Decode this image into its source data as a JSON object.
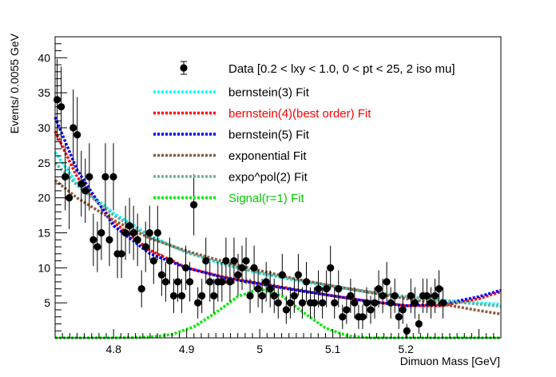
{
  "chart_data": {
    "type": "scatter",
    "title": "",
    "xlabel": "Dimuon Mass [GeV]",
    "ylabel": "Events/ 0.0055 GeV",
    "xlim": [
      4.72,
      5.33
    ],
    "ylim": [
      0,
      43
    ],
    "x_ticks": [
      4.8,
      4.9,
      5,
      5.1,
      5.2
    ],
    "x_tick_labels": [
      "4.8",
      "4.9",
      "5",
      "5.1",
      "5.2"
    ],
    "y_ticks": [
      0,
      5,
      10,
      15,
      20,
      25,
      30,
      35,
      40
    ],
    "y_tick_labels": [
      "",
      "5",
      "10",
      "15",
      "20",
      "25",
      "30",
      "35",
      "40"
    ],
    "grid": false,
    "legend_position": "top-right",
    "data_series": {
      "name": "Data [0.2 < lxy < 1.0, 0 < pt < 25, 2 iso mu]",
      "bin_width": 0.0055,
      "x_start": 4.7228,
      "values": [
        34,
        33,
        23,
        20,
        30,
        29,
        22,
        21,
        23,
        14,
        13,
        15,
        23,
        14,
        23,
        12,
        12,
        15,
        16,
        15,
        14,
        7,
        13,
        15,
        11,
        15,
        9,
        8,
        11,
        6,
        8,
        6,
        10,
        8,
        19,
        5,
        6,
        11,
        8,
        6,
        8,
        8,
        11,
        8,
        11,
        9,
        10,
        11,
        6,
        10,
        7,
        6,
        8,
        7,
        6,
        5,
        9,
        4,
        5,
        6,
        9,
        5,
        8,
        5,
        5,
        7,
        5,
        7,
        10,
        5,
        7,
        3,
        4,
        6,
        5,
        3,
        3,
        5,
        4,
        5,
        7,
        6,
        8,
        5,
        6,
        3,
        4,
        1,
        6,
        5,
        2,
        6,
        6,
        5,
        6,
        7,
        5
      ]
    },
    "fits": [
      {
        "name": "bernstein(3) Fit",
        "color": "#00ffff",
        "x": [
          4.72,
          4.75,
          4.8,
          4.85,
          4.9,
          4.95,
          5.0,
          5.05,
          5.1,
          5.15,
          5.2,
          5.25,
          5.3,
          5.33
        ],
        "y": [
          26.5,
          22.0,
          17.8,
          14.6,
          12.2,
          10.5,
          9.2,
          8.2,
          7.3,
          6.5,
          5.9,
          5.4,
          5.0,
          4.8
        ]
      },
      {
        "name": "bernstein(4)(best order) Fit",
        "color": "#ff0000",
        "x": [
          4.72,
          4.75,
          4.8,
          4.85,
          4.9,
          4.95,
          5.0,
          5.05,
          5.1,
          5.15,
          5.2,
          5.25,
          5.3,
          5.33
        ],
        "y": [
          29.5,
          23.0,
          16.5,
          12.5,
          10.0,
          8.7,
          7.8,
          6.9,
          6.0,
          5.2,
          4.6,
          4.6,
          5.6,
          6.6
        ]
      },
      {
        "name": "bernstein(5) Fit",
        "color": "#0000ff",
        "x": [
          4.72,
          4.75,
          4.8,
          4.85,
          4.9,
          4.95,
          5.0,
          5.05,
          5.1,
          5.15,
          5.2,
          5.25,
          5.3,
          5.33
        ],
        "y": [
          31.5,
          24.0,
          16.0,
          12.0,
          10.0,
          8.6,
          7.7,
          6.8,
          6.0,
          5.2,
          4.6,
          4.8,
          5.9,
          6.8
        ]
      },
      {
        "name": "exponential Fit",
        "color": "#8b5a3c",
        "x": [
          4.72,
          4.75,
          4.8,
          4.85,
          4.9,
          4.95,
          5.0,
          5.05,
          5.1,
          5.15,
          5.2,
          5.25,
          5.3,
          5.33
        ],
        "y": [
          22.5,
          20.0,
          16.8,
          14.2,
          12.4,
          10.9,
          9.6,
          8.4,
          7.4,
          6.5,
          5.6,
          4.8,
          3.9,
          3.4
        ]
      },
      {
        "name": "expo^pol(2) Fit",
        "color": "#66b2a0",
        "x": [
          4.72,
          4.75,
          4.8,
          4.85,
          4.9,
          4.95,
          5.0,
          5.05,
          5.1,
          5.15,
          5.2,
          5.25,
          5.3,
          5.33
        ],
        "y": [
          25.0,
          21.8,
          17.5,
          14.4,
          12.2,
          10.6,
          9.3,
          8.3,
          7.4,
          6.6,
          5.9,
          5.3,
          4.8,
          4.5
        ]
      },
      {
        "name": "Signal(r=1) Fit",
        "color": "#00ee00",
        "x": [
          4.72,
          4.8,
          4.85,
          4.88,
          4.91,
          4.94,
          4.97,
          5.0,
          5.03,
          5.06,
          5.09,
          5.12,
          5.15,
          5.33
        ],
        "y": [
          0.0,
          0.0,
          0.1,
          0.5,
          1.6,
          3.6,
          5.9,
          7.0,
          6.0,
          3.6,
          1.4,
          0.3,
          0.0,
          0.0
        ]
      }
    ]
  },
  "legend": {
    "data_label": "Data [0.2 < lxy < 1.0, 0 < pt < 25, 2 iso mu]",
    "items": [
      {
        "label": "bernstein(3) Fit",
        "color": "#00ffff",
        "text_color": "#000000"
      },
      {
        "label": "bernstein(4)(best order) Fit",
        "color": "#ff0000",
        "text_color": "#ff0000"
      },
      {
        "label": "bernstein(5) Fit",
        "color": "#0000ff",
        "text_color": "#000000"
      },
      {
        "label": "exponential Fit",
        "color": "#8b5a3c",
        "text_color": "#000000"
      },
      {
        "label": "expo^pol(2) Fit",
        "color": "#66b2a0",
        "text_color": "#000000"
      },
      {
        "label": "Signal(r=1) Fit",
        "color": "#00ee00",
        "text_color": "#00cc00"
      }
    ]
  }
}
